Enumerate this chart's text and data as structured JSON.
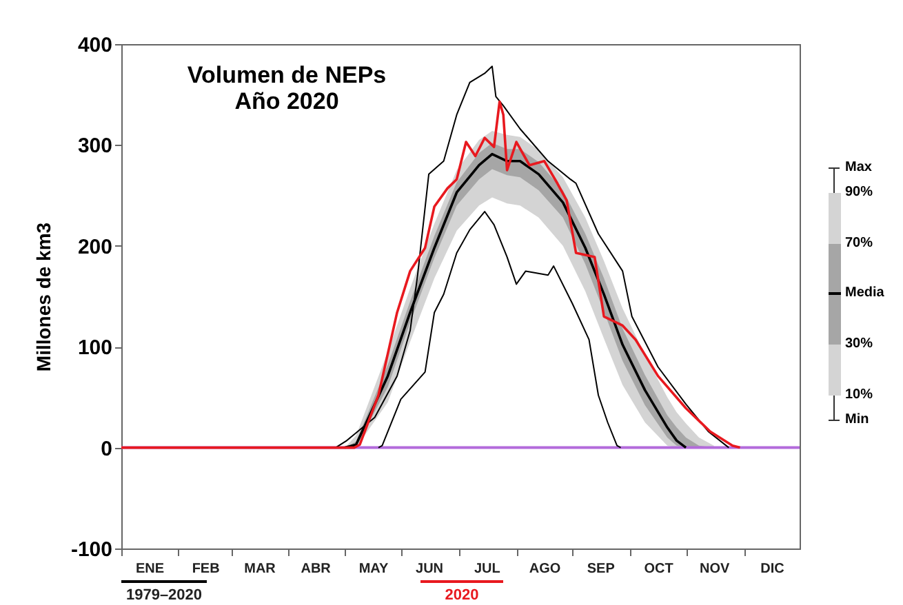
{
  "chart_data": {
    "type": "line",
    "title": "Volumen de NEPs",
    "subtitle": "Año 2020",
    "ylabel": "Millones de km3",
    "xlim": [
      "--01-01",
      "--12-31"
    ],
    "xticks": [
      {
        "value": "--01-16",
        "label": "ENE"
      },
      {
        "value": "--02-15",
        "label": "FEB"
      },
      {
        "value": "--03-16",
        "label": "MAR"
      },
      {
        "value": "--04-15",
        "label": "ABR"
      },
      {
        "value": "--05-16",
        "label": "MAY"
      },
      {
        "value": "--06-15",
        "label": "JUN"
      },
      {
        "value": "--07-16",
        "label": "JUL"
      },
      {
        "value": "--08-16",
        "label": "AGO"
      },
      {
        "value": "--09-15",
        "label": "SEP"
      },
      {
        "value": "--10-16",
        "label": "OCT"
      },
      {
        "value": "--11-15",
        "label": "NOV"
      },
      {
        "value": "--12-16",
        "label": "DIC"
      }
    ],
    "ylim": [
      -100,
      400
    ],
    "yticks": [
      -100,
      0,
      100,
      200,
      300,
      400
    ],
    "grid": false,
    "legend": "bottom",
    "ref_lines": [
      {
        "axis": "y",
        "value": 0,
        "color": "#b36bdb"
      }
    ],
    "annotations": [
      "Max",
      "90%",
      "70%",
      "Media",
      "30%",
      "10%",
      "Min"
    ],
    "series": [
      {
        "color": "#d4d4d4",
        "x": [
          "--05-01",
          "--05-07",
          "--05-24",
          "--06-05",
          "--06-18",
          "--06-30",
          "--07-12",
          "--07-19",
          "--07-27",
          "--08-03",
          "--08-13",
          "--08-26",
          "--09-07",
          "--09-17",
          "--09-27",
          "--10-09",
          "--10-21",
          "--10-26",
          "--10-31",
          "--11-07",
          "--11-15"
        ],
        "values": [
          null,
          null,
          null,
          null,
          null,
          null,
          null,
          null,
          null,
          null,
          null,
          null,
          null,
          null,
          null,
          null,
          null,
          null,
          null,
          null,
          null
        ],
        "lower": [
          0,
          0,
          45,
          105,
          168,
          215,
          240,
          248,
          242,
          240,
          228,
          200,
          155,
          108,
          62,
          25,
          2,
          0,
          0,
          0,
          0
        ],
        "upper": [
          0,
          12,
          95,
          158,
          222,
          275,
          305,
          314,
          310,
          308,
          295,
          268,
          228,
          185,
          138,
          92,
          50,
          35,
          24,
          10,
          2
        ]
      },
      {
        "color": "#a6a6a6",
        "x": [
          "--05-01",
          "--05-07",
          "--05-24",
          "--06-05",
          "--06-18",
          "--06-30",
          "--07-12",
          "--07-19",
          "--07-27",
          "--08-03",
          "--08-13",
          "--08-26",
          "--09-07",
          "--09-17",
          "--09-27",
          "--10-09",
          "--10-21",
          "--10-26",
          "--10-31",
          "--11-07",
          "--11-15"
        ],
        "values": [
          null,
          null,
          null,
          null,
          null,
          null,
          null,
          null,
          null,
          null,
          null,
          null,
          null,
          null,
          null,
          null,
          null,
          null,
          null,
          null,
          null
        ],
        "lower": [
          0,
          1,
          60,
          124,
          188,
          240,
          266,
          276,
          270,
          268,
          255,
          228,
          182,
          135,
          86,
          42,
          10,
          2,
          0,
          0,
          0
        ],
        "upper": [
          0,
          6,
          82,
          145,
          210,
          263,
          292,
          302,
          296,
          296,
          283,
          255,
          212,
          168,
          118,
          72,
          32,
          20,
          10,
          2,
          0
        ]
      },
      {
        "color": "#000000",
        "x": [
          "--04-26",
          "--05-02",
          "--05-17",
          "--05-29",
          "--06-05",
          "--06-09",
          "--06-15",
          "--06-23",
          "--06-30",
          "--07-07",
          "--07-15",
          "--07-19",
          "--07-21",
          "--07-25",
          "--08-03",
          "--08-18",
          "--08-30",
          "--09-02",
          "--09-14",
          "--09-27",
          "--10-02",
          "--10-16",
          "--10-31",
          "--11-12",
          "--11-23"
        ],
        "values": [
          0,
          7,
          30,
          71,
          116,
          171,
          271,
          284,
          330,
          362,
          371,
          378,
          348,
          339,
          316,
          284,
          266,
          262,
          212,
          175,
          130,
          80,
          43,
          16,
          0
        ]
      },
      {
        "color": "#000000",
        "x": [
          "--05-19",
          "--05-21",
          "--05-31",
          "--06-13",
          "--06-18",
          "--06-23",
          "--06-30",
          "--07-07",
          "--07-15",
          "--07-20",
          "--07-27",
          "--08-01",
          "--08-06",
          "--08-18",
          "--08-21",
          "--08-31",
          "--09-09",
          "--09-14",
          "--09-19",
          "--09-24",
          "--09-26"
        ],
        "values": [
          0,
          2,
          48,
          75,
          134,
          152,
          193,
          216,
          234,
          221,
          189,
          162,
          175,
          171,
          180,
          143,
          107,
          52,
          25,
          2,
          0
        ]
      },
      {
        "name": "1979–2020",
        "color": "#000000",
        "x": [
          "--05-01",
          "--05-07",
          "--05-24",
          "--06-05",
          "--06-18",
          "--06-30",
          "--07-12",
          "--07-19",
          "--07-27",
          "--08-03",
          "--08-13",
          "--08-26",
          "--09-07",
          "--09-17",
          "--09-27",
          "--10-09",
          "--10-21",
          "--10-26",
          "--10-31"
        ],
        "values": [
          0,
          3,
          71,
          134,
          198,
          253,
          280,
          291,
          284,
          284,
          271,
          243,
          198,
          152,
          102,
          57,
          20,
          7,
          0
        ]
      },
      {
        "name": "2020",
        "color": "#e8191f",
        "x": [
          "--01-01",
          "--05-06",
          "--05-09",
          "--05-19",
          "--05-29",
          "--06-05",
          "--06-13",
          "--06-18",
          "--06-25",
          "--06-30",
          "--07-05",
          "--07-10",
          "--07-15",
          "--07-20",
          "--07-23",
          "--07-25",
          "--07-27",
          "--08-01",
          "--08-08",
          "--08-16",
          "--08-23",
          "--08-28",
          "--09-02",
          "--09-12",
          "--09-17",
          "--09-27",
          "--10-04",
          "--10-16",
          "--10-31",
          "--11-13",
          "--11-25",
          "--11-29"
        ],
        "values": [
          0,
          0,
          3,
          52,
          134,
          175,
          198,
          239,
          257,
          266,
          303,
          289,
          307,
          298,
          343,
          330,
          275,
          303,
          280,
          284,
          262,
          245,
          193,
          189,
          130,
          121,
          107,
          71,
          39,
          16,
          2,
          0
        ]
      }
    ]
  }
}
